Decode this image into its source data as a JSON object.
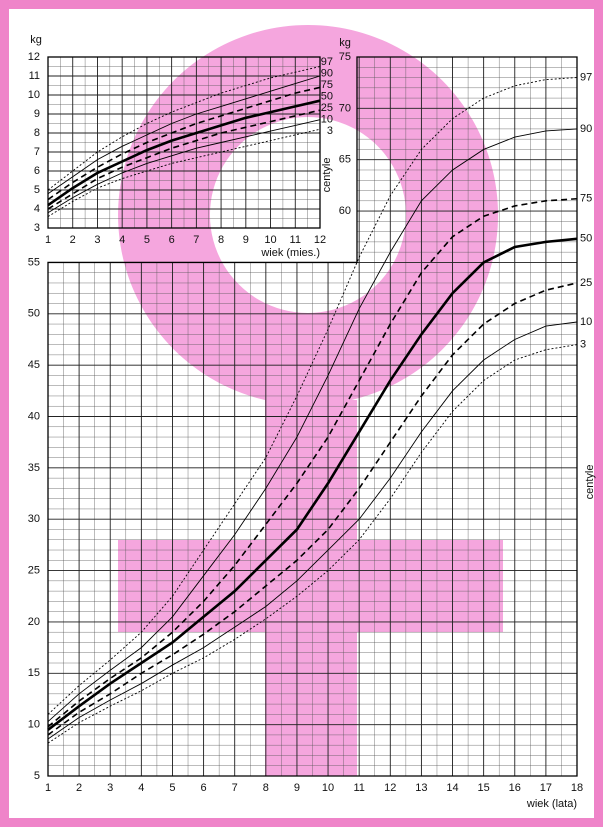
{
  "chart_data": [
    {
      "type": "line",
      "xlim": [
        1,
        18
      ],
      "ylim": [
        5,
        75
      ],
      "y2lim": [
        5,
        75
      ],
      "xticks": [
        1,
        2,
        3,
        4,
        5,
        6,
        7,
        8,
        9,
        10,
        11,
        12,
        13,
        14,
        15,
        16,
        17,
        18
      ],
      "yticks": [
        5,
        10,
        15,
        20,
        25,
        30,
        35,
        40,
        45,
        50,
        55
      ],
      "y2ticks": [
        60,
        65,
        70,
        75
      ],
      "x_label": "wiek (lata)",
      "y_label": "kg",
      "y2_label": "centyle",
      "legend_title": "centyle",
      "grid": true,
      "x": [
        1,
        2,
        3,
        4,
        5,
        6,
        7,
        8,
        9,
        10,
        11,
        12,
        13,
        14,
        15,
        16,
        17,
        18
      ],
      "series": [
        {
          "name": "97",
          "color": "#000000",
          "style": "dotted",
          "values": [
            11,
            13.8,
            16.3,
            19,
            22.5,
            27,
            31.5,
            36,
            42,
            48.5,
            55.5,
            61.5,
            66,
            69,
            71,
            72.2,
            72.8,
            73
          ]
        },
        {
          "name": "90",
          "color": "#000000",
          "style": "solid",
          "values": [
            10.3,
            13,
            15.3,
            17.5,
            20.5,
            24.5,
            28.5,
            33,
            38,
            44,
            50.5,
            56,
            61,
            64,
            66,
            67.2,
            67.8,
            68
          ]
        },
        {
          "name": "75",
          "color": "#000000",
          "style": "dashed",
          "values": [
            9.8,
            12.3,
            14.5,
            16.5,
            19,
            22,
            25.5,
            29.5,
            33.5,
            38,
            43.5,
            49,
            54,
            57.5,
            59.5,
            60.5,
            61,
            61.2
          ]
        },
        {
          "name": "50",
          "color": "#000000",
          "style": "bold",
          "values": [
            9.5,
            11.8,
            14,
            16,
            18,
            20.5,
            23,
            26,
            29,
            33.5,
            38.5,
            43.5,
            48,
            52,
            55,
            56.5,
            57,
            57.3
          ]
        },
        {
          "name": "25",
          "color": "#000000",
          "style": "dashed",
          "values": [
            9,
            11.2,
            13,
            15,
            16.8,
            18.8,
            21,
            23.5,
            26,
            29,
            33,
            37.5,
            42,
            46,
            49,
            51,
            52.3,
            53
          ]
        },
        {
          "name": "10",
          "color": "#000000",
          "style": "solid",
          "values": [
            8.6,
            10.7,
            12.4,
            14,
            15.8,
            17.5,
            19.5,
            21.5,
            24,
            27,
            30,
            34,
            38.5,
            42.5,
            45.5,
            47.5,
            48.8,
            49.2
          ]
        },
        {
          "name": "3",
          "color": "#000000",
          "style": "dotted",
          "values": [
            8.2,
            10.2,
            11.8,
            13.3,
            15,
            16.5,
            18.3,
            20.3,
            22.5,
            25,
            28,
            32,
            36.5,
            40.5,
            43.5,
            45.5,
            46.5,
            47
          ]
        }
      ]
    },
    {
      "type": "line",
      "xlim": [
        1,
        12
      ],
      "ylim": [
        3,
        12
      ],
      "xticks": [
        1,
        2,
        3,
        4,
        5,
        6,
        7,
        8,
        9,
        10,
        11,
        12
      ],
      "yticks": [
        3,
        4,
        5,
        6,
        7,
        8,
        9,
        10,
        11,
        12
      ],
      "x_label": "wiek (mies.)",
      "y_label": "kg",
      "grid": true,
      "x": [
        1,
        2,
        3,
        4,
        5,
        6,
        7,
        8,
        9,
        10,
        11,
        12
      ],
      "series": [
        {
          "name": "97",
          "color": "#000000",
          "style": "dotted",
          "values": [
            5,
            6,
            7,
            7.8,
            8.5,
            9.1,
            9.6,
            10.1,
            10.5,
            10.9,
            11.2,
            11.5
          ]
        },
        {
          "name": "90",
          "color": "#000000",
          "style": "solid",
          "values": [
            4.8,
            5.7,
            6.6,
            7.3,
            7.9,
            8.5,
            9,
            9.4,
            9.8,
            10.2,
            10.6,
            11
          ]
        },
        {
          "name": "75",
          "color": "#000000",
          "style": "dashed",
          "values": [
            4.5,
            5.4,
            6.2,
            6.9,
            7.5,
            8,
            8.5,
            8.9,
            9.3,
            9.7,
            10.1,
            10.4
          ]
        },
        {
          "name": "50",
          "color": "#000000",
          "style": "bold",
          "values": [
            4.2,
            5.1,
            5.9,
            6.5,
            7.1,
            7.6,
            8,
            8.4,
            8.8,
            9.1,
            9.4,
            9.7
          ]
        },
        {
          "name": "25",
          "color": "#000000",
          "style": "dashed",
          "values": [
            4,
            4.8,
            5.6,
            6.2,
            6.7,
            7.2,
            7.6,
            8,
            8.3,
            8.6,
            8.9,
            9.2
          ]
        },
        {
          "name": "10",
          "color": "#000000",
          "style": "solid",
          "values": [
            3.8,
            4.6,
            5.3,
            5.9,
            6.4,
            6.8,
            7.2,
            7.5,
            7.8,
            8.1,
            8.4,
            8.7
          ]
        },
        {
          "name": "3",
          "color": "#000000",
          "style": "dotted",
          "values": [
            3.6,
            4.4,
            5.1,
            5.6,
            6,
            6.4,
            6.7,
            7,
            7.3,
            7.6,
            7.9,
            8.2
          ]
        }
      ]
    }
  ]
}
